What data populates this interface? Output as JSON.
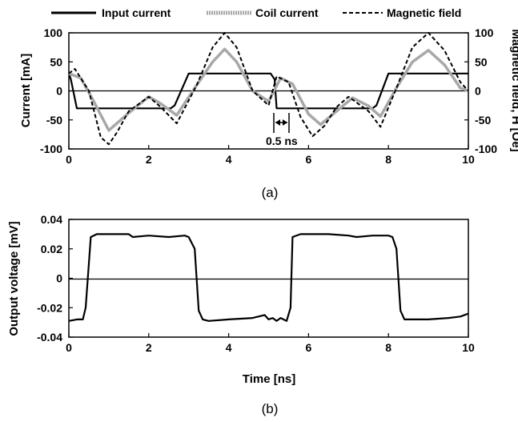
{
  "chart_data": [
    {
      "panel_label": "(a)",
      "type": "line",
      "xlabel": "",
      "ylabel": "Current [mA]",
      "y2label": "Magnetic field, H [Oe]",
      "xlim": [
        0,
        10
      ],
      "ylim": [
        -100,
        100
      ],
      "y2lim": [
        -100,
        100
      ],
      "x_ticks": [
        "0",
        "2",
        "4",
        "6",
        "8",
        "10"
      ],
      "y_ticks": [
        "100",
        "50",
        "0",
        "-50",
        "-100"
      ],
      "y2_ticks": [
        "100",
        "50",
        "0",
        "-50",
        "-100"
      ],
      "grid": false,
      "legend_position": "top",
      "annotation": "0.5 ns",
      "series": [
        {
          "name": "Input current",
          "style": "solid",
          "color": "#000000",
          "x": [
            0,
            0.05,
            0.2,
            2.55,
            2.65,
            3.0,
            5.05,
            5.15,
            5.2,
            7.6,
            7.7,
            8.0,
            10
          ],
          "y": [
            30,
            20,
            -30,
            -30,
            -25,
            30,
            30,
            20,
            -30,
            -30,
            -25,
            30,
            30
          ]
        },
        {
          "name": "Coil current",
          "style": "gray",
          "color": "#a8a8a8",
          "x": [
            0,
            0.3,
            0.6,
            1.0,
            1.5,
            2.0,
            2.3,
            2.7,
            3.2,
            3.6,
            3.9,
            4.2,
            4.6,
            5.0,
            5.3,
            5.6,
            6.0,
            6.3,
            6.7,
            7.1,
            7.5,
            7.8,
            8.2,
            8.6,
            9.0,
            9.4,
            9.8,
            10
          ],
          "y": [
            30,
            22,
            -15,
            -68,
            -38,
            -10,
            -22,
            -42,
            10,
            50,
            72,
            50,
            0,
            -18,
            22,
            12,
            -40,
            -58,
            -35,
            -12,
            -26,
            -44,
            5,
            50,
            70,
            45,
            5,
            0
          ]
        },
        {
          "name": "Magnetic field",
          "style": "dashed",
          "color": "#000000",
          "x": [
            0,
            0.15,
            0.5,
            0.8,
            1.0,
            1.2,
            1.5,
            2.0,
            2.3,
            2.7,
            3.2,
            3.6,
            3.9,
            4.2,
            4.6,
            5.0,
            5.2,
            5.5,
            5.8,
            6.1,
            6.4,
            6.7,
            7.0,
            7.5,
            7.8,
            8.2,
            8.6,
            9.0,
            9.4,
            9.8,
            10
          ],
          "y": [
            30,
            38,
            0,
            -80,
            -92,
            -72,
            -35,
            -10,
            -28,
            -56,
            10,
            75,
            100,
            75,
            0,
            -25,
            25,
            15,
            -45,
            -78,
            -60,
            -28,
            -10,
            -35,
            -62,
            5,
            75,
            100,
            70,
            15,
            0
          ]
        }
      ]
    },
    {
      "panel_label": "(b)",
      "type": "line",
      "xlabel": "Time [ns]",
      "ylabel": "Output voltage [mV]",
      "xlim": [
        0,
        10
      ],
      "ylim": [
        -0.04,
        0.04
      ],
      "x_ticks": [
        "0",
        "2",
        "4",
        "6",
        "8",
        "10"
      ],
      "y_ticks": [
        "0.04",
        "0.02",
        "0",
        "-0.02",
        "-0.04"
      ],
      "grid": false,
      "series": [
        {
          "name": "",
          "style": "solid",
          "color": "#000000",
          "x": [
            0,
            0.2,
            0.35,
            0.42,
            0.55,
            0.7,
            1.0,
            1.5,
            1.6,
            2.0,
            2.5,
            2.9,
            3.0,
            3.15,
            3.25,
            3.35,
            3.5,
            4.0,
            4.6,
            4.9,
            5.0,
            5.1,
            5.2,
            5.3,
            5.45,
            5.55,
            5.6,
            5.8,
            6.5,
            7.0,
            7.2,
            7.6,
            8.0,
            8.1,
            8.2,
            8.3,
            8.4,
            8.6,
            9.0,
            9.5,
            9.8,
            10
          ],
          "y": [
            -0.029,
            -0.028,
            -0.028,
            -0.02,
            0.028,
            0.03,
            0.03,
            0.03,
            0.028,
            0.029,
            0.028,
            0.029,
            0.028,
            0.02,
            -0.022,
            -0.028,
            -0.029,
            -0.028,
            -0.027,
            -0.025,
            -0.028,
            -0.027,
            -0.029,
            -0.027,
            -0.029,
            -0.02,
            0.028,
            0.03,
            0.03,
            0.029,
            0.028,
            0.029,
            0.029,
            0.028,
            0.02,
            -0.022,
            -0.028,
            -0.028,
            -0.028,
            -0.027,
            -0.026,
            -0.024
          ]
        }
      ]
    }
  ]
}
